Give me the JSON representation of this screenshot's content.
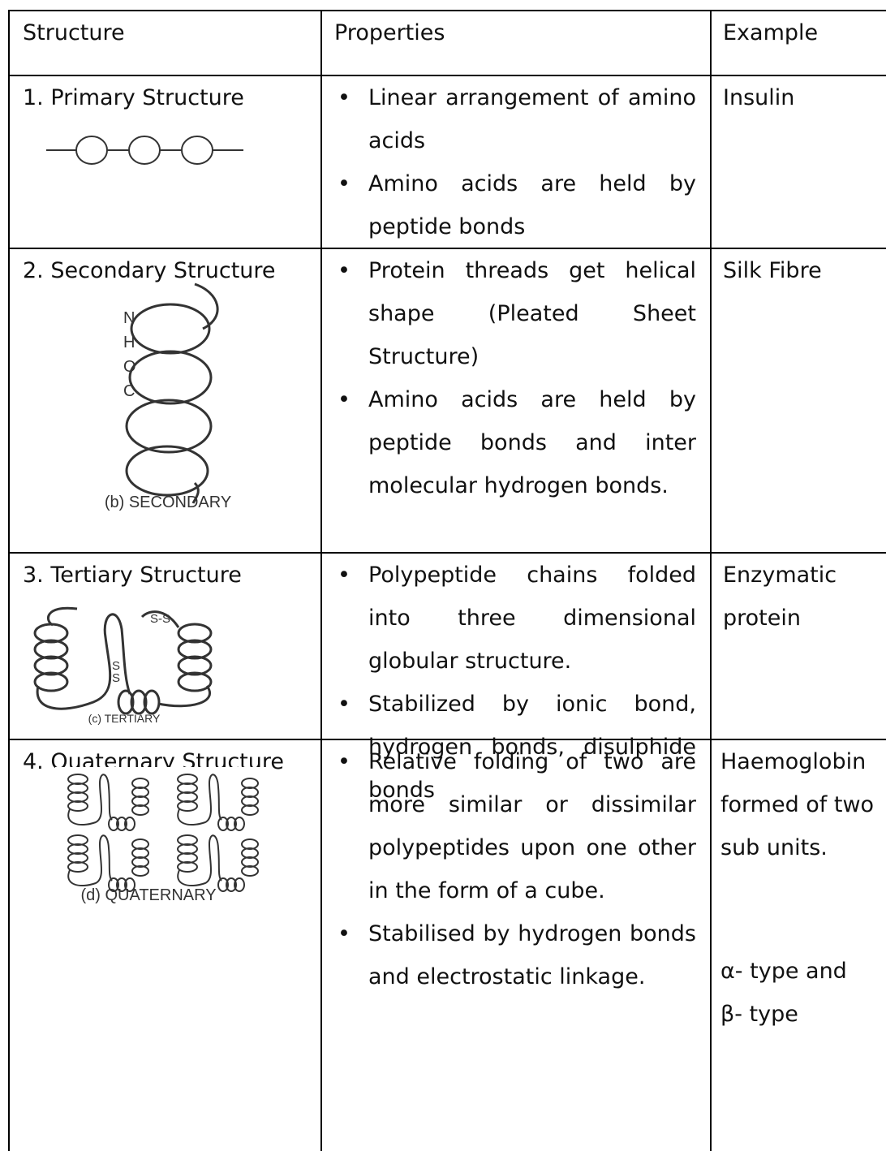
{
  "table": {
    "header": [
      "Structure",
      "Properties",
      "Example"
    ],
    "rows": [
      {
        "structure": "1. Primary Structure",
        "properties": [
          "Linear arrangement of amino acids",
          "Amino acids are held by peptide bonds"
        ],
        "example": [
          "Insulin"
        ]
      },
      {
        "structure": "2. Secondary Structure",
        "figure": {
          "atoms": [
            "N",
            "H",
            "O",
            "C"
          ],
          "caption": "(b) SECONDARY"
        },
        "properties": [
          "Protein threads get helical shape (Pleated Sheet Structure)",
          "Amino acids are held by peptide bonds and inter molecular hydrogen bonds."
        ],
        "example": [
          "Silk Fibre"
        ]
      },
      {
        "structure": "3. Tertiary Structure",
        "figure": {
          "bonds": [
            "S-S",
            "S",
            "S"
          ],
          "caption": "(c) TERTIARY"
        },
        "properties": [
          "Polypeptide chains folded into three dimensional globular structure.",
          "Stabilized by ionic bond, hydrogen bonds, disulphide bonds"
        ],
        "example": [
          "Enzymatic protein"
        ]
      },
      {
        "structure": "4. Quaternary Structure",
        "figure": {
          "caption": "(d) QUATERNARY"
        },
        "properties": [
          "Relative folding of two are more similar or dissimilar polypeptides upon one other in the form of a cube.",
          "Stabilised by hydrogen bonds and electrostatic linkage."
        ],
        "example": [
          "Haemoglobin formed of two sub units.",
          "α- type and",
          "β- type"
        ]
      }
    ]
  }
}
